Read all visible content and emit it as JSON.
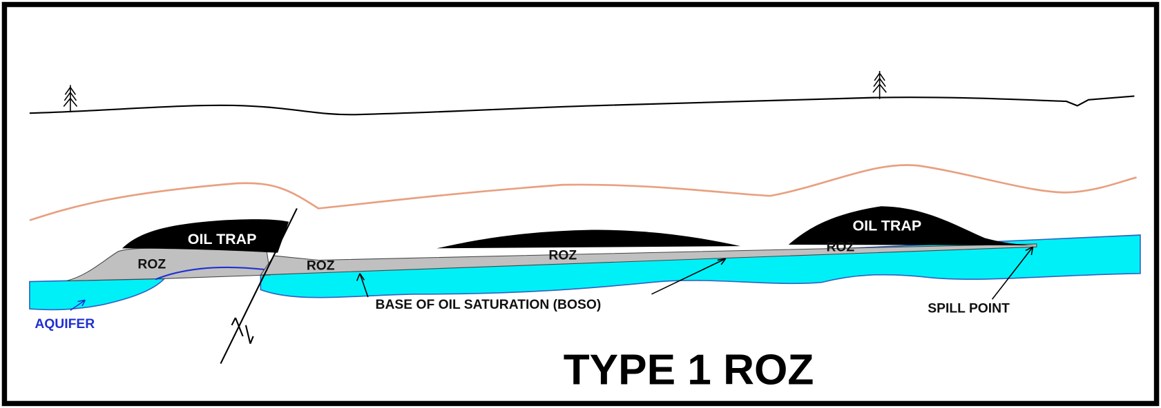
{
  "labels": {
    "oil_trap_left": "OIL TRAP",
    "oil_trap_right": "OIL TRAP",
    "roz": [
      "ROZ",
      "ROZ",
      "ROZ",
      "ROZ"
    ],
    "boso": "BASE OF OIL SATURATION (BOSO)",
    "spill_point": "SPILL POINT",
    "aquifer": "AQUIFER"
  },
  "title": "TYPE 1 ROZ"
}
